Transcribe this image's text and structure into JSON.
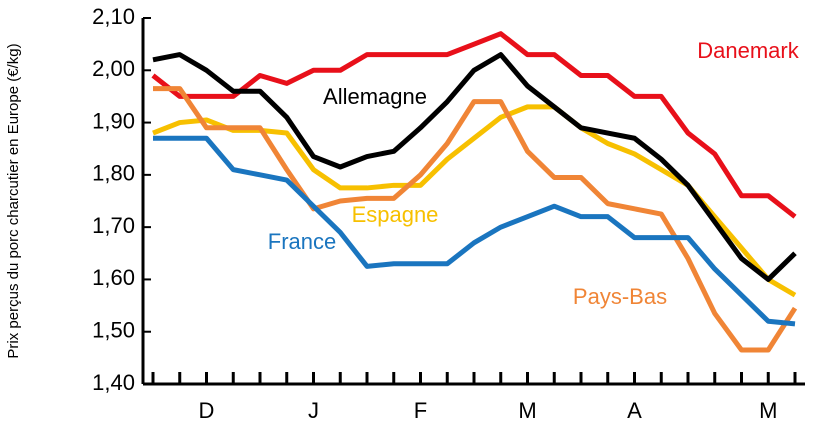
{
  "chart_data": {
    "type": "line",
    "y_label": "Prix perçus du porc charcutier en Europe (€/kg)",
    "categories": [
      null,
      null,
      "D",
      null,
      null,
      null,
      "J",
      null,
      null,
      null,
      "F",
      null,
      null,
      null,
      "M",
      null,
      null,
      null,
      "A",
      null,
      null,
      null,
      null,
      "M",
      null
    ],
    "series": [
      {
        "name": "Danemark",
        "color": "#e8101a",
        "values": [
          1.99,
          1.95,
          1.95,
          1.95,
          1.99,
          1.975,
          2.0,
          2.0,
          2.03,
          2.03,
          2.03,
          2.03,
          2.05,
          2.07,
          2.03,
          2.03,
          1.99,
          1.99,
          1.95,
          1.95,
          1.88,
          1.84,
          1.76,
          1.76,
          1.72
        ]
      },
      {
        "name": "Allemagne",
        "color": "#000000",
        "values": [
          2.02,
          2.03,
          2.0,
          1.96,
          1.96,
          1.91,
          1.835,
          1.815,
          1.835,
          1.845,
          1.89,
          1.94,
          2.0,
          2.03,
          1.97,
          1.93,
          1.89,
          1.88,
          1.87,
          1.83,
          1.78,
          1.71,
          1.64,
          1.6,
          1.65
        ]
      },
      {
        "name": "France",
        "color": "#1a75bf",
        "values": [
          1.87,
          1.87,
          1.87,
          1.81,
          1.8,
          1.79,
          1.74,
          1.69,
          1.625,
          1.63,
          1.63,
          1.63,
          1.67,
          1.7,
          1.72,
          1.74,
          1.72,
          1.72,
          1.68,
          1.68,
          1.68,
          1.62,
          1.57,
          1.52,
          1.515
        ]
      },
      {
        "name": "Espagne",
        "color": "#f7c000",
        "values": [
          1.88,
          1.9,
          1.905,
          1.885,
          1.885,
          1.88,
          1.81,
          1.775,
          1.775,
          1.78,
          1.78,
          1.83,
          1.87,
          1.91,
          1.93,
          1.93,
          1.89,
          1.86,
          1.84,
          1.81,
          1.78,
          1.72,
          1.66,
          1.6,
          1.57
        ]
      },
      {
        "name": "Pays-Bas",
        "color": "#f08536",
        "values": [
          1.965,
          1.965,
          1.89,
          1.89,
          1.89,
          1.81,
          1.735,
          1.75,
          1.755,
          1.755,
          1.8,
          1.86,
          1.94,
          1.94,
          1.845,
          1.795,
          1.795,
          1.745,
          1.735,
          1.725,
          1.64,
          1.535,
          1.465,
          1.465,
          1.545
        ]
      }
    ],
    "ylim": [
      1.4,
      2.1
    ],
    "yticks": [
      {
        "value": 1.4,
        "label": "1,40"
      },
      {
        "value": 1.5,
        "label": "1,50"
      },
      {
        "value": 1.6,
        "label": "1,60"
      },
      {
        "value": 1.7,
        "label": "1,70"
      },
      {
        "value": 1.8,
        "label": "1,80"
      },
      {
        "value": 1.9,
        "label": "1,90"
      },
      {
        "value": 2.0,
        "label": "2,00"
      },
      {
        "value": 2.1,
        "label": "2,10"
      }
    ]
  }
}
